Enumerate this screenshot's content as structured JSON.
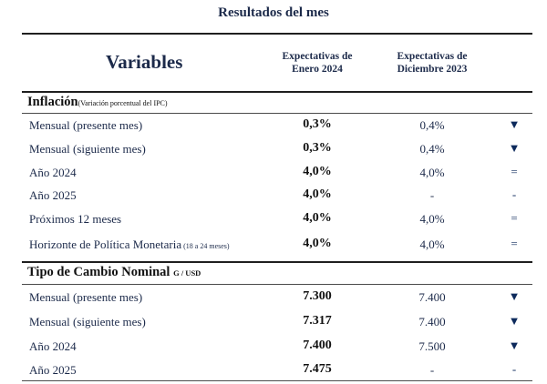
{
  "title": "Resultados del mes",
  "variables_heading": "Variables",
  "columns": {
    "current": "Expectativas de\nEnero 2024",
    "previous": "Expectativas de\nDiciembre 2023"
  },
  "sections": [
    {
      "title": "Inflación",
      "note": "(Variación porcentual del IPC)",
      "rows": [
        {
          "label": "Mensual (presente mes)",
          "current": "0,3%",
          "previous": "0,4%",
          "indicator": "▼"
        },
        {
          "label": "Mensual (siguiente mes)",
          "current": "0,3%",
          "previous": "0,4%",
          "indicator": "▼"
        },
        {
          "label": "Año 2024",
          "current": "4,0%",
          "previous": "4,0%",
          "indicator": "="
        },
        {
          "label": "Año 2025",
          "current": "4,0%",
          "previous": "-",
          "indicator": "-"
        },
        {
          "label": "Próximos 12 meses",
          "current": "4,0%",
          "previous": "4,0%",
          "indicator": "="
        },
        {
          "label": "Horizonte de Política Monetaria",
          "label_note": "(18 a 24 meses)",
          "current": "4,0%",
          "previous": "4,0%",
          "indicator": "="
        }
      ]
    },
    {
      "title": "Tipo de Cambio Nominal",
      "unit": "G / USD",
      "rows": [
        {
          "label": "Mensual (presente mes)",
          "current": "7.300",
          "previous": "7.400",
          "indicator": "▼"
        },
        {
          "label": "Mensual (siguiente mes)",
          "current": "7.317",
          "previous": "7.400",
          "indicator": "▼"
        },
        {
          "label": "Año 2024",
          "current": "7.400",
          "previous": "7.500",
          "indicator": "▼"
        },
        {
          "label": "Año 2025",
          "current": "7.475",
          "previous": "-",
          "indicator": "-"
        }
      ]
    }
  ]
}
